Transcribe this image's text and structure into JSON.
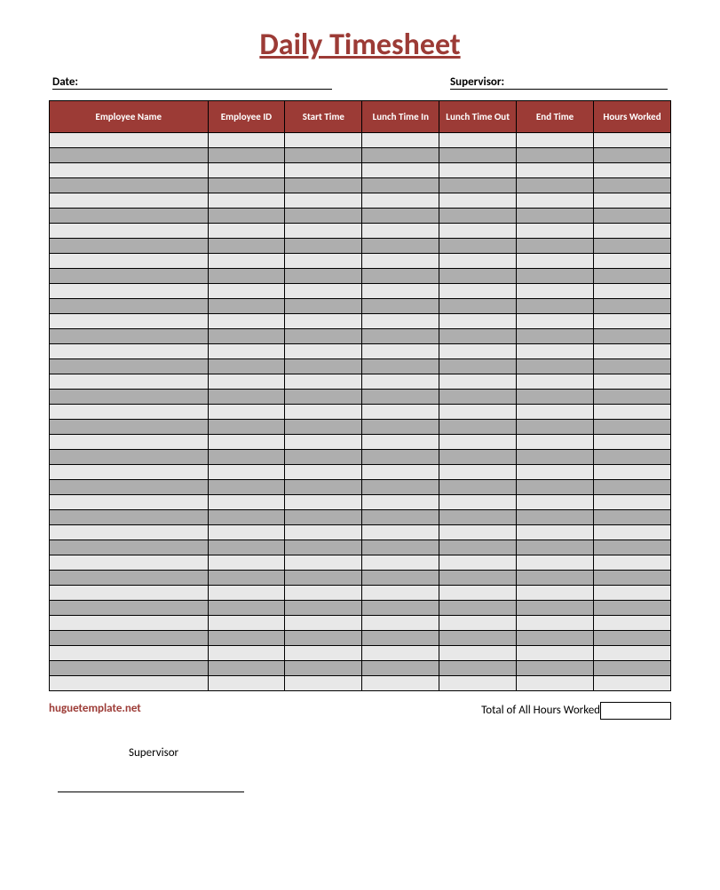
{
  "title": "Daily Timesheet",
  "title_color": "#9c3b36",
  "header_bg": "#9c3b36",
  "header_fg": "#ffffff",
  "row_light": "#e8e8e8",
  "row_dark": "#aeaeae",
  "meta": {
    "date_label": "Date:",
    "supervisor_label": "Supervisor:"
  },
  "columns": [
    "Employee Name",
    "Employee ID",
    "Start Time",
    "Lunch Time In",
    "Lunch Time Out",
    "End Time",
    "Hours Worked"
  ],
  "row_count": 37,
  "brand": "huguetemplate.net",
  "brand_color": "#9c3b36",
  "total_label": "Total of All Hours Worked",
  "supervisor_footer": "Supervisor"
}
